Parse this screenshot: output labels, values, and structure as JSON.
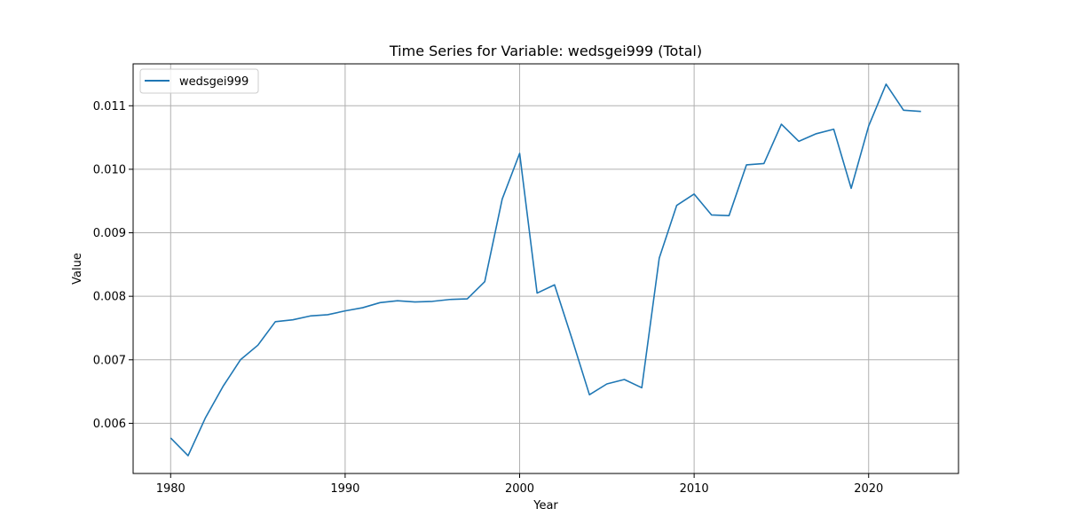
{
  "chart_data": {
    "type": "line",
    "title": "Time Series for Variable: wedsgei999 (Total)",
    "xlabel": "Year",
    "ylabel": "Value",
    "xlim": [
      1977.85,
      2025.15
    ],
    "ylim": [
      0.00521,
      0.01166
    ],
    "grid": true,
    "legend_position": "upper-left",
    "x_ticks": [
      1980,
      1990,
      2000,
      2010,
      2020
    ],
    "y_ticks": [
      0.006,
      0.007,
      0.008,
      0.009,
      0.01,
      0.011
    ],
    "y_tick_labels": [
      "0.006",
      "0.007",
      "0.008",
      "0.009",
      "0.010",
      "0.011"
    ],
    "series": [
      {
        "name": "wedsgei999",
        "color": "#1f77b4",
        "x": [
          1980,
          1981,
          1982,
          1983,
          1984,
          1985,
          1986,
          1987,
          1988,
          1989,
          1990,
          1991,
          1992,
          1993,
          1994,
          1995,
          1996,
          1997,
          1998,
          1999,
          2000,
          2001,
          2002,
          2003,
          2004,
          2005,
          2006,
          2007,
          2008,
          2009,
          2010,
          2011,
          2012,
          2013,
          2014,
          2015,
          2016,
          2017,
          2018,
          2019,
          2020,
          2021,
          2022,
          2023
        ],
        "values": [
          0.00577,
          0.00549,
          0.00609,
          0.00658,
          0.007,
          0.00723,
          0.0076,
          0.00763,
          0.00769,
          0.00771,
          0.00777,
          0.00782,
          0.0079,
          0.00793,
          0.00791,
          0.00792,
          0.00795,
          0.00796,
          0.00823,
          0.00953,
          0.01025,
          0.00805,
          0.00818,
          0.00733,
          0.00645,
          0.00662,
          0.00669,
          0.00656,
          0.0086,
          0.00943,
          0.00961,
          0.00928,
          0.00927,
          0.01007,
          0.01009,
          0.01071,
          0.01044,
          0.01056,
          0.01063,
          0.0097,
          0.01068,
          0.01134,
          0.01093,
          0.01091
        ]
      }
    ]
  }
}
